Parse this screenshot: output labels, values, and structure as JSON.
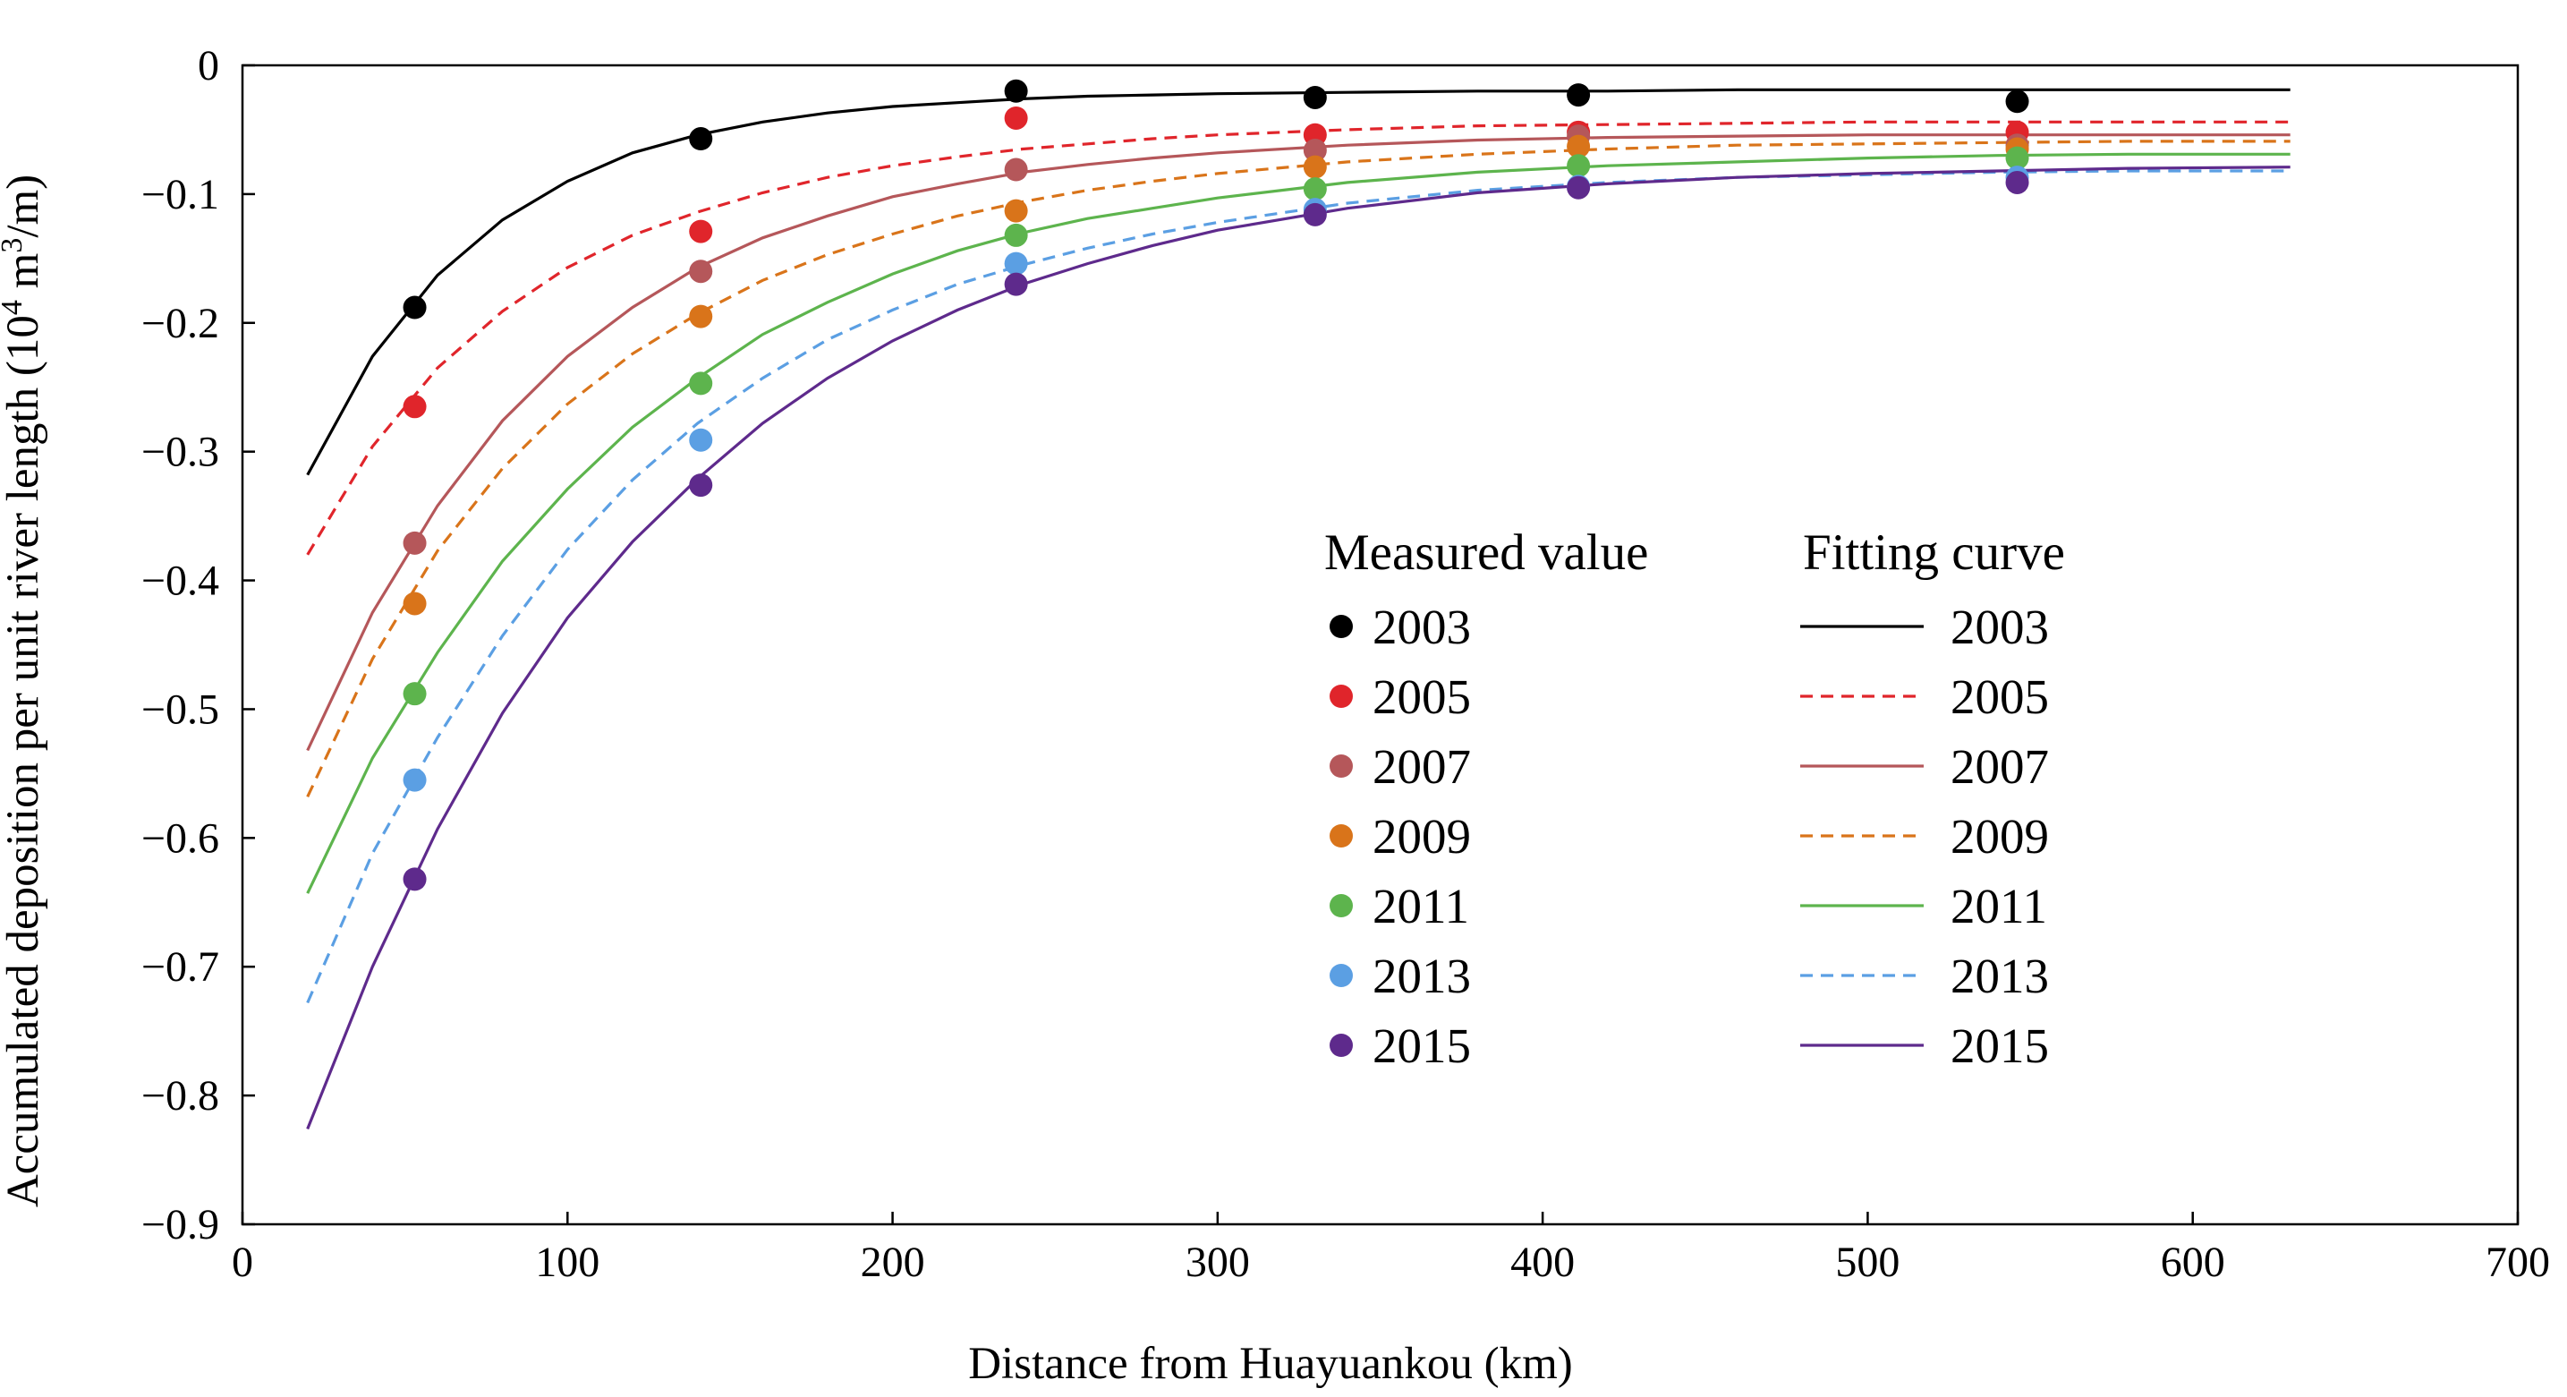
{
  "chart_data": {
    "type": "line",
    "title": "",
    "xlabel": "Distance from Huayuankou (km)",
    "ylabel": "Accumulated deposition per unit river length (10",
    "ylabel_sup": "4",
    "ylabel_tail": " m",
    "ylabel_sup2": "3",
    "ylabel_end": "/m)",
    "xlim": [
      0,
      700
    ],
    "ylim": [
      -0.9,
      0
    ],
    "xticks": [
      0,
      100,
      200,
      300,
      400,
      500,
      600,
      700
    ],
    "xtick_labels": [
      "0",
      "100",
      "200",
      "300",
      "400",
      "500",
      "600",
      "700"
    ],
    "yticks": [
      0,
      -0.1,
      -0.2,
      -0.3,
      -0.4,
      -0.5,
      -0.6,
      -0.7,
      -0.8,
      -0.9
    ],
    "ytick_labels": [
      "0",
      "−0.1",
      "−0.2",
      "−0.3",
      "−0.4",
      "−0.5",
      "−0.6",
      "−0.7",
      "−0.8",
      "−0.9"
    ],
    "grid": false,
    "legend": {
      "placement": "center-right",
      "measured_header": "Measured value",
      "fitting_header": "Fitting curve"
    },
    "measured_x": [
      53,
      141,
      238,
      330,
      411,
      546
    ],
    "series": [
      {
        "name": "2003",
        "color": "#000000",
        "dash": "solid",
        "measured": [
          -0.188,
          -0.057,
          -0.02,
          -0.025,
          -0.023,
          -0.028
        ],
        "fit_x": [
          20,
          40,
          60,
          80,
          100,
          120,
          140,
          160,
          180,
          200,
          220,
          240,
          260,
          280,
          300,
          340,
          380,
          420,
          460,
          500,
          540,
          580,
          630
        ],
        "fit_y": [
          -0.318,
          -0.226,
          -0.163,
          -0.12,
          -0.09,
          -0.068,
          -0.054,
          -0.044,
          -0.037,
          -0.032,
          -0.029,
          -0.026,
          -0.024,
          -0.023,
          -0.022,
          -0.021,
          -0.02,
          -0.02,
          -0.019,
          -0.019,
          -0.019,
          -0.019,
          -0.019
        ]
      },
      {
        "name": "2005",
        "color": "#e0252b",
        "dash": "dash",
        "measured": [
          -0.265,
          -0.129,
          -0.041,
          -0.054,
          -0.052,
          -0.052
        ],
        "fit_x": [
          20,
          40,
          60,
          80,
          100,
          120,
          140,
          160,
          180,
          200,
          220,
          240,
          260,
          280,
          300,
          340,
          380,
          420,
          460,
          500,
          540,
          580,
          630
        ],
        "fit_y": [
          -0.38,
          -0.296,
          -0.235,
          -0.191,
          -0.157,
          -0.132,
          -0.114,
          -0.099,
          -0.087,
          -0.078,
          -0.071,
          -0.065,
          -0.061,
          -0.057,
          -0.054,
          -0.05,
          -0.047,
          -0.046,
          -0.045,
          -0.044,
          -0.044,
          -0.044,
          -0.044
        ]
      },
      {
        "name": "2007",
        "color": "#b5575a",
        "dash": "solid",
        "measured": [
          -0.371,
          -0.16,
          -0.081,
          -0.066,
          -0.055,
          -0.062
        ],
        "fit_x": [
          20,
          40,
          60,
          80,
          100,
          120,
          140,
          160,
          180,
          200,
          220,
          240,
          260,
          280,
          300,
          340,
          380,
          420,
          460,
          500,
          540,
          580,
          630
        ],
        "fit_y": [
          -0.532,
          -0.425,
          -0.342,
          -0.276,
          -0.226,
          -0.188,
          -0.157,
          -0.134,
          -0.117,
          -0.102,
          -0.092,
          -0.083,
          -0.077,
          -0.072,
          -0.068,
          -0.062,
          -0.058,
          -0.056,
          -0.055,
          -0.054,
          -0.054,
          -0.054,
          -0.054
        ]
      },
      {
        "name": "2009",
        "color": "#d9741a",
        "dash": "dash",
        "measured": [
          -0.418,
          -0.195,
          -0.113,
          -0.079,
          -0.063,
          -0.065
        ],
        "fit_x": [
          20,
          40,
          60,
          80,
          100,
          120,
          140,
          160,
          180,
          200,
          220,
          240,
          260,
          280,
          300,
          340,
          380,
          420,
          460,
          500,
          540,
          580,
          630
        ],
        "fit_y": [
          -0.568,
          -0.461,
          -0.377,
          -0.313,
          -0.263,
          -0.224,
          -0.193,
          -0.167,
          -0.147,
          -0.131,
          -0.117,
          -0.106,
          -0.097,
          -0.09,
          -0.084,
          -0.075,
          -0.069,
          -0.065,
          -0.062,
          -0.061,
          -0.06,
          -0.059,
          -0.059
        ]
      },
      {
        "name": "2011",
        "color": "#5db44d",
        "dash": "solid",
        "measured": [
          -0.488,
          -0.247,
          -0.132,
          -0.096,
          -0.078,
          -0.072
        ],
        "fit_x": [
          20,
          40,
          60,
          80,
          100,
          120,
          140,
          160,
          180,
          200,
          220,
          240,
          260,
          280,
          300,
          340,
          380,
          420,
          460,
          500,
          540,
          580,
          630
        ],
        "fit_y": [
          -0.643,
          -0.538,
          -0.456,
          -0.385,
          -0.329,
          -0.281,
          -0.243,
          -0.209,
          -0.184,
          -0.162,
          -0.144,
          -0.13,
          -0.119,
          -0.111,
          -0.103,
          -0.091,
          -0.083,
          -0.078,
          -0.075,
          -0.072,
          -0.07,
          -0.069,
          -0.069
        ]
      },
      {
        "name": "2013",
        "color": "#5b9fe3",
        "dash": "dash",
        "measured": [
          -0.555,
          -0.291,
          -0.154,
          -0.112,
          -0.094,
          -0.087
        ],
        "fit_x": [
          20,
          40,
          60,
          80,
          100,
          120,
          140,
          160,
          180,
          200,
          220,
          240,
          260,
          280,
          300,
          340,
          380,
          420,
          460,
          500,
          540,
          580,
          630
        ],
        "fit_y": [
          -0.728,
          -0.612,
          -0.522,
          -0.443,
          -0.376,
          -0.322,
          -0.278,
          -0.243,
          -0.213,
          -0.19,
          -0.17,
          -0.155,
          -0.142,
          -0.131,
          -0.122,
          -0.107,
          -0.097,
          -0.091,
          -0.087,
          -0.085,
          -0.083,
          -0.082,
          -0.082
        ]
      },
      {
        "name": "2015",
        "color": "#5e2a8c",
        "dash": "solid",
        "measured": [
          -0.632,
          -0.326,
          -0.17,
          -0.116,
          -0.095,
          -0.091
        ],
        "fit_x": [
          20,
          40,
          60,
          80,
          100,
          120,
          140,
          160,
          180,
          200,
          220,
          240,
          260,
          280,
          300,
          340,
          380,
          420,
          460,
          500,
          540,
          580,
          630
        ],
        "fit_y": [
          -0.826,
          -0.7,
          -0.593,
          -0.503,
          -0.429,
          -0.37,
          -0.321,
          -0.278,
          -0.243,
          -0.214,
          -0.19,
          -0.17,
          -0.154,
          -0.14,
          -0.128,
          -0.111,
          -0.099,
          -0.092,
          -0.087,
          -0.084,
          -0.082,
          -0.08,
          -0.079
        ]
      }
    ]
  }
}
